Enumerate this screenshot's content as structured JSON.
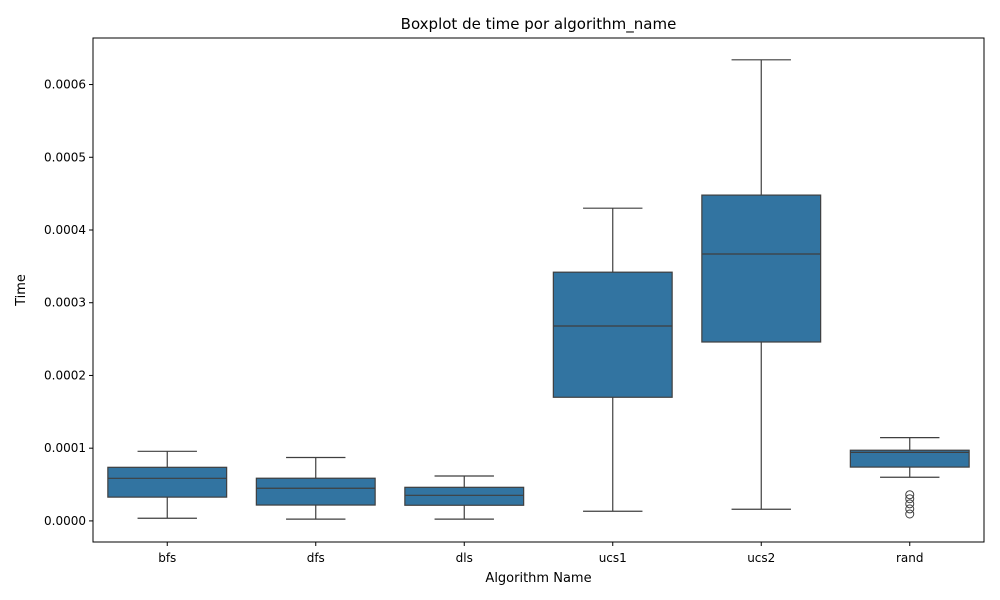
{
  "chart_data": {
    "type": "boxplot",
    "title": "Boxplot de time por algorithm_name",
    "xlabel": "Algorithm Name",
    "ylabel": "Time",
    "ylim": [
      -2.9e-05,
      0.000664
    ],
    "yticks": [
      0.0,
      0.0001,
      0.0002,
      0.0003,
      0.0004,
      0.0005,
      0.0006
    ],
    "ytick_labels": [
      "0.0000",
      "0.0001",
      "0.0002",
      "0.0003",
      "0.0004",
      "0.0005",
      "0.0006"
    ],
    "categories": [
      "bfs",
      "dfs",
      "dls",
      "ucs1",
      "ucs2",
      "rand"
    ],
    "boxes": [
      {
        "whisker_low": 3.7e-06,
        "q1": 3.27e-05,
        "median": 5.86e-05,
        "q3": 7.37e-05,
        "whisker_high": 9.57e-05,
        "outliers": []
      },
      {
        "whisker_low": 2.5e-06,
        "q1": 2.18e-05,
        "median": 4.49e-05,
        "q3": 5.87e-05,
        "whisker_high": 8.72e-05,
        "outliers": []
      },
      {
        "whisker_low": 2.5e-06,
        "q1": 2.15e-05,
        "median": 3.52e-05,
        "q3": 4.62e-05,
        "whisker_high": 6.17e-05,
        "outliers": []
      },
      {
        "whisker_low": 1.33e-05,
        "q1": 0.00017,
        "median": 0.000268,
        "q3": 0.000342,
        "whisker_high": 0.00043,
        "outliers": []
      },
      {
        "whisker_low": 1.6e-05,
        "q1": 0.000246,
        "median": 0.000367,
        "q3": 0.000448,
        "whisker_high": 0.000634,
        "outliers": []
      },
      {
        "whisker_low": 6e-05,
        "q1": 7.4e-05,
        "median": 9.42e-05,
        "q3": 9.72e-05,
        "whisker_high": 0.0001145,
        "outliers": [
          9.5e-06,
          1.65e-05,
          2.35e-05,
          3.05e-05,
          3.6e-05
        ]
      }
    ],
    "box_color": "#3274a1",
    "line_color": "#3f3f3f",
    "grid": false,
    "legend": "none"
  }
}
